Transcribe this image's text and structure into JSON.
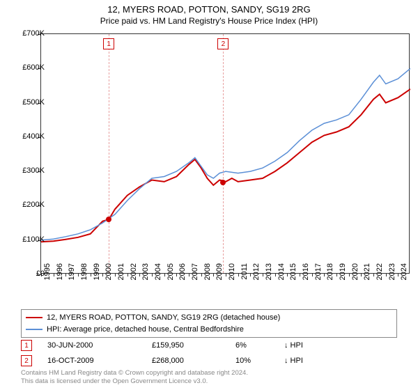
{
  "title": "12, MYERS ROAD, POTTON, SANDY, SG19 2RG",
  "subtitle": "Price paid vs. HM Land Registry's House Price Index (HPI)",
  "chart": {
    "type": "line",
    "background_color": "#ffffff",
    "border_color": "#333333",
    "ylim": [
      0,
      700000
    ],
    "ytick_step": 100000,
    "yticks": [
      "£0",
      "£100K",
      "£200K",
      "£300K",
      "£400K",
      "£500K",
      "£600K",
      "£700K"
    ],
    "xlim": [
      1995,
      2025
    ],
    "xticks": [
      "1995",
      "1996",
      "1997",
      "1998",
      "1999",
      "2000",
      "2001",
      "2002",
      "2003",
      "2004",
      "2005",
      "2006",
      "2007",
      "2008",
      "2009",
      "2010",
      "2011",
      "2012",
      "2013",
      "2014",
      "2015",
      "2016",
      "2017",
      "2018",
      "2019",
      "2020",
      "2021",
      "2022",
      "2023",
      "2024"
    ],
    "series": [
      {
        "name": "12, MYERS ROAD, POTTON, SANDY, SG19 2RG (detached house)",
        "color": "#cc0000",
        "line_width": 2,
        "points": [
          [
            1995,
            95000
          ],
          [
            1996,
            97000
          ],
          [
            1997,
            102000
          ],
          [
            1998,
            108000
          ],
          [
            1999,
            118000
          ],
          [
            2000,
            155000
          ],
          [
            2000.5,
            160000
          ],
          [
            2001,
            190000
          ],
          [
            2002,
            230000
          ],
          [
            2003,
            255000
          ],
          [
            2004,
            275000
          ],
          [
            2005,
            270000
          ],
          [
            2006,
            285000
          ],
          [
            2007,
            320000
          ],
          [
            2007.5,
            335000
          ],
          [
            2008,
            310000
          ],
          [
            2008.5,
            280000
          ],
          [
            2009,
            260000
          ],
          [
            2009.5,
            275000
          ],
          [
            2010,
            270000
          ],
          [
            2010.5,
            280000
          ],
          [
            2011,
            270000
          ],
          [
            2012,
            275000
          ],
          [
            2013,
            280000
          ],
          [
            2014,
            300000
          ],
          [
            2015,
            325000
          ],
          [
            2016,
            355000
          ],
          [
            2017,
            385000
          ],
          [
            2018,
            405000
          ],
          [
            2019,
            415000
          ],
          [
            2020,
            430000
          ],
          [
            2021,
            465000
          ],
          [
            2022,
            510000
          ],
          [
            2022.5,
            525000
          ],
          [
            2023,
            500000
          ],
          [
            2024,
            515000
          ],
          [
            2025,
            540000
          ]
        ]
      },
      {
        "name": "HPI: Average price, detached house, Central Bedfordshire",
        "color": "#5b8fd6",
        "line_width": 1.5,
        "points": [
          [
            1995,
            100000
          ],
          [
            1996,
            103000
          ],
          [
            1997,
            110000
          ],
          [
            1998,
            118000
          ],
          [
            1999,
            130000
          ],
          [
            2000,
            150000
          ],
          [
            2001,
            175000
          ],
          [
            2002,
            215000
          ],
          [
            2003,
            250000
          ],
          [
            2004,
            280000
          ],
          [
            2005,
            285000
          ],
          [
            2006,
            300000
          ],
          [
            2007,
            325000
          ],
          [
            2007.5,
            340000
          ],
          [
            2008,
            315000
          ],
          [
            2008.5,
            290000
          ],
          [
            2009,
            280000
          ],
          [
            2009.5,
            295000
          ],
          [
            2010,
            300000
          ],
          [
            2011,
            295000
          ],
          [
            2012,
            300000
          ],
          [
            2013,
            310000
          ],
          [
            2014,
            330000
          ],
          [
            2015,
            355000
          ],
          [
            2016,
            390000
          ],
          [
            2017,
            420000
          ],
          [
            2018,
            440000
          ],
          [
            2019,
            450000
          ],
          [
            2020,
            465000
          ],
          [
            2021,
            510000
          ],
          [
            2022,
            560000
          ],
          [
            2022.5,
            580000
          ],
          [
            2023,
            555000
          ],
          [
            2024,
            570000
          ],
          [
            2025,
            600000
          ]
        ]
      }
    ],
    "sale_markers": [
      {
        "label": "1",
        "x": 2000.5,
        "y": 159950
      },
      {
        "label": "2",
        "x": 2009.8,
        "y": 268000
      }
    ],
    "marker_border_color": "#cc0000",
    "marker_line_color": "#e8a0a0"
  },
  "legend": {
    "items": [
      {
        "color": "#cc0000",
        "width": 2,
        "text": "12, MYERS ROAD, POTTON, SANDY, SG19 2RG (detached house)"
      },
      {
        "color": "#5b8fd6",
        "width": 1.5,
        "text": "HPI: Average price, detached house, Central Bedfordshire"
      }
    ]
  },
  "sales": [
    {
      "marker": "1",
      "date": "30-JUN-2000",
      "price": "£159,950",
      "pct": "6%",
      "direction": "↓ HPI"
    },
    {
      "marker": "2",
      "date": "16-OCT-2009",
      "price": "£268,000",
      "pct": "10%",
      "direction": "↓ HPI"
    }
  ],
  "footer_line1": "Contains HM Land Registry data © Crown copyright and database right 2024.",
  "footer_line2": "This data is licensed under the Open Government Licence v3.0.",
  "label_fontsize": 11,
  "title_fontsize": 13
}
